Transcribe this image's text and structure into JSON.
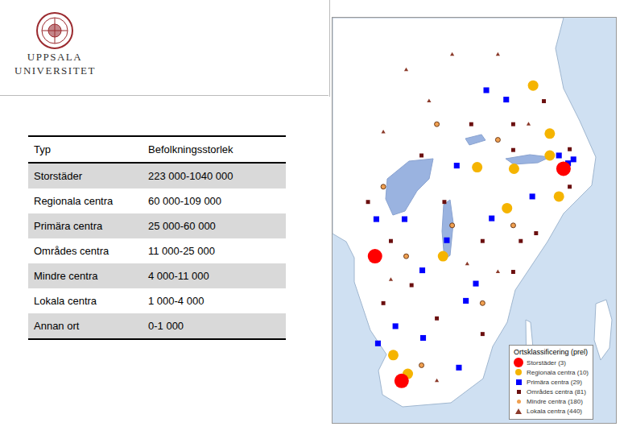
{
  "header": {
    "logo_text": [
      "UPPSALA",
      "UNIVERSITET"
    ]
  },
  "table": {
    "columns": [
      "Typ",
      "Befolkningsstorlek"
    ],
    "rows": [
      [
        "Storstäder",
        "223 000-1040 000"
      ],
      [
        "Regionala centra",
        "60 000-109 000"
      ],
      [
        "Primära centra",
        "25 000-60 000"
      ],
      [
        "Områdes centra",
        "11 000-25 000"
      ],
      [
        "Mindre centra",
        "4 000-11 000"
      ],
      [
        "Lokala centra",
        "1 000-4 000"
      ],
      [
        "Annan ort",
        "0-1 000"
      ]
    ]
  },
  "chart_data": {
    "type": "scatter",
    "title": "Ortsklassificering (prel)",
    "xlim": [
      0,
      100
    ],
    "ylim": [
      0,
      100
    ],
    "tick_labels": false,
    "grid": false,
    "legend": "lower right",
    "series": [
      {
        "name": "Storstäder (3)",
        "color": "#ff0000",
        "marker": "circle",
        "x": [
          83.2,
          13.1,
          23.0
        ],
        "values": [
          63.2,
          40.8,
          8.9
        ]
      },
      {
        "name": "Regionala centra (10)",
        "color": "#f5b400",
        "marker": "circle",
        "x": [
          71.9,
          78.1,
          51.1,
          62.2,
          38.4,
          19.9,
          25.3,
          81.5,
          78.1,
          64.8
        ],
        "values": [
          84.5,
          72.2,
          63.6,
          53.1,
          40.8,
          15.5,
          10.7,
          56.1,
          66.6,
          63.2
        ]
      },
      {
        "name": "Primära centra (29)",
        "color": "#0000ff",
        "marker": "square",
        "x": [
          54.5,
          61.9,
          81.5,
          84.9,
          43.5,
          56.5,
          13.6,
          24.1,
          30.7,
          46.9,
          20.7,
          31.0,
          14.2,
          44.3,
          71.6,
          50.6,
          86.9,
          39.8
        ],
        "values": [
          83.3,
          80.9,
          66.6,
          64.6,
          64.0,
          50.5,
          50.3,
          50.3,
          37.2,
          29.4,
          22.9,
          19.9,
          18.5,
          12.3,
          56.1,
          33.8,
          65.6,
          44.9
        ]
      },
      {
        "name": "Områdes centra (81)",
        "color": "#6b0f0f",
        "marker": "square",
        "x": [
          64.5,
          85.5,
          85.5,
          64.5,
          48.9,
          30.4,
          38.9,
          19.0,
          26.7,
          53.1,
          67.3,
          64.5,
          36.1,
          53.1,
          16.2,
          10.5,
          75.9,
          73.0
        ],
        "values": [
          68.0,
          68.2,
          58.6,
          74.6,
          74.6,
          66.6,
          54.7,
          44.7,
          33.4,
          44.7,
          44.7,
          36.8,
          24.9,
          20.9,
          28.8,
          54.7,
          80.5,
          46.7
        ]
      },
      {
        "name": "Mindre centra (180)",
        "color": "#f0a050",
        "marker": "circle",
        "x": [
          36.1,
          58.8,
          16.2,
          41.8,
          64.5,
          24.7,
          53.1,
          30.4
        ],
        "values": [
          74.6,
          70.6,
          58.6,
          48.7,
          48.7,
          40.8,
          28.8,
          12.9
        ]
      },
      {
        "name": "Lokala centra (440)",
        "color": "#8b3a2a",
        "marker": "triangle",
        "x": [
          24.7,
          41.8,
          58.8,
          33.2,
          16.2,
          47.4,
          58.8,
          36.1,
          19.0,
          70.2
        ],
        "values": [
          88.5,
          92.4,
          92.4,
          80.5,
          72.6,
          38.8,
          36.8,
          8.9,
          34.8,
          74.6
        ]
      }
    ]
  }
}
